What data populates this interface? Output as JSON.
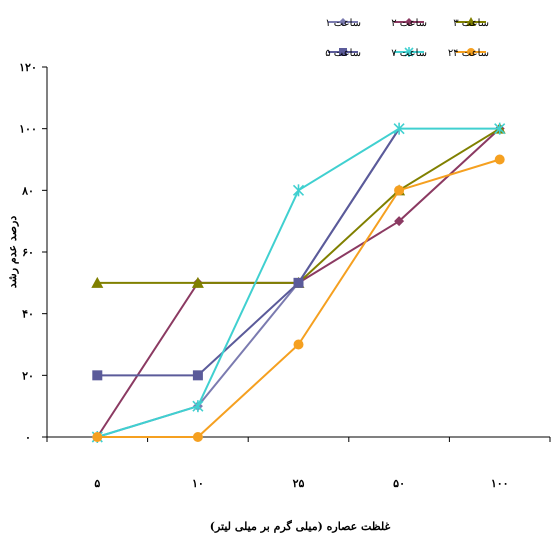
{
  "chart_data": {
    "type": "line",
    "title": "",
    "xlabel": "غلظت عصاره (میلی گرم بر میلی لیتر)",
    "ylabel": "درصد عدم رشد",
    "categories": [
      "۵",
      "۱۰",
      "۲۵",
      "۵۰",
      "۱۰۰"
    ],
    "ylim": [
      0,
      120
    ],
    "yticks": [
      0,
      20,
      40,
      60,
      80,
      100,
      120
    ],
    "ytick_labels": [
      "۰",
      "۲۰",
      "۴۰",
      "۶۰",
      "۸۰",
      "۱۰۰",
      "۱۲۰"
    ],
    "grid": false,
    "legend_position": "top-right",
    "series": [
      {
        "name": "ساعت ۱",
        "color": "#7b7bb0",
        "marker": "diamond",
        "values": [
          0,
          10,
          50,
          100,
          null
        ]
      },
      {
        "name": "ساعت ۲",
        "color": "#8b3a62",
        "marker": "diamond",
        "values": [
          0,
          50,
          50,
          70,
          100
        ]
      },
      {
        "name": "ساعت ۳",
        "color": "#808000",
        "marker": "triangle",
        "values": [
          50,
          50,
          50,
          80,
          100
        ]
      },
      {
        "name": "ساعت ۵",
        "color": "#5b5b9a",
        "marker": "square",
        "values": [
          20,
          20,
          50,
          100,
          null
        ]
      },
      {
        "name": "ساعت ۷",
        "color": "#40d0d0",
        "marker": "star",
        "values": [
          0,
          10,
          80,
          100,
          100
        ]
      },
      {
        "name": "ساعت ۲۴",
        "color": "#f5a020",
        "marker": "circle",
        "values": [
          0,
          0,
          30,
          80,
          90
        ]
      }
    ]
  }
}
